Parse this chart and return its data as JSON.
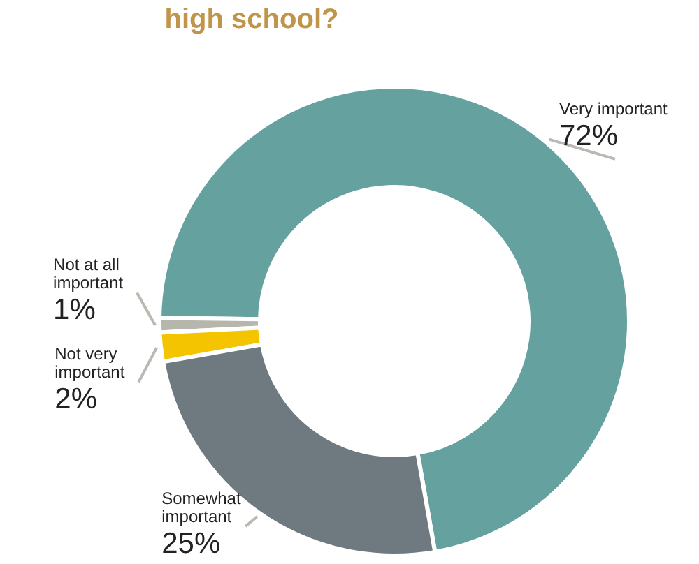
{
  "chart_data": {
    "type": "donut",
    "title": "high school?",
    "categories": [
      "Very important",
      "Not at all important",
      "Not very important",
      "Somewhat important"
    ],
    "values": [
      72,
      1,
      2,
      25
    ],
    "colors": [
      "#65a19f",
      "#b5b7ad",
      "#f5c400",
      "#6f7a80"
    ],
    "value_labels": [
      "72%",
      "1%",
      "2%",
      "25%"
    ]
  }
}
